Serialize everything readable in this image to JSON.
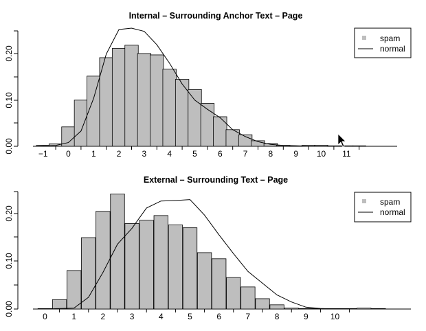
{
  "chart_data": [
    {
      "type": "bar",
      "title": "Internal – Surrounding Anchor Text – Page",
      "xlabel": "",
      "ylabel": "",
      "ylim": [
        0,
        0.25
      ],
      "yticks": [
        "0.00",
        "0.10",
        "0.20"
      ],
      "x_tick_labels": [
        "−1",
        "0",
        "1",
        "2",
        "3",
        "4",
        "5",
        "6",
        "7",
        "8",
        "9",
        "10",
        "11"
      ],
      "legend": {
        "position": "top-right",
        "items": [
          "spam",
          "normal"
        ]
      },
      "series": [
        {
          "name": "spam",
          "kind": "bar",
          "x": [
            -1,
            -0.5,
            0,
            0.5,
            1,
            1.5,
            2,
            2.5,
            3,
            3.5,
            4,
            4.5,
            5,
            5.5,
            6,
            6.5,
            7,
            7.5,
            8,
            8.5,
            9,
            9.5,
            10,
            10.5,
            11,
            11.5
          ],
          "values": [
            0.002,
            0.005,
            0.042,
            0.1,
            0.152,
            0.192,
            0.212,
            0.219,
            0.201,
            0.198,
            0.167,
            0.145,
            0.123,
            0.093,
            0.064,
            0.036,
            0.025,
            0.012,
            0.006,
            0.002,
            0.001,
            0.002,
            0.002,
            0.001,
            0.001,
            0.001
          ]
        },
        {
          "name": "normal",
          "kind": "line",
          "x": [
            -1.3,
            -0.5,
            0,
            0.5,
            1,
            1.5,
            2,
            2.5,
            3,
            3.5,
            4,
            4.5,
            5,
            5.5,
            6,
            6.5,
            7,
            7.5,
            8,
            8.5,
            9,
            9.5,
            10,
            10.5,
            11
          ],
          "values": [
            0,
            0.002,
            0.008,
            0.033,
            0.104,
            0.2,
            0.253,
            0.256,
            0.249,
            0.22,
            0.18,
            0.135,
            0.1,
            0.08,
            0.062,
            0.036,
            0.021,
            0.01,
            0.004,
            0.002,
            0.001,
            0,
            0,
            0,
            0
          ]
        }
      ]
    },
    {
      "type": "bar",
      "title": "External –  Surrounding Text – Page",
      "xlabel": "",
      "ylabel": "",
      "ylim": [
        0,
        0.25
      ],
      "yticks": [
        "0.00",
        "0.10",
        "0.20"
      ],
      "x_tick_labels": [
        "0",
        "1",
        "2",
        "3",
        "4",
        "5",
        "6",
        "7",
        "8",
        "9",
        "10"
      ],
      "legend": {
        "position": "top-right",
        "items": [
          "spam",
          "normal"
        ]
      },
      "series": [
        {
          "name": "spam",
          "kind": "bar",
          "x": [
            0,
            0.5,
            1,
            1.5,
            2,
            2.5,
            3,
            3.5,
            4,
            4.5,
            5,
            5.5,
            6,
            6.5,
            7,
            7.5,
            8,
            8.5,
            9,
            9.5,
            10,
            10.5,
            11,
            11.5
          ],
          "values": [
            0.001,
            0.02,
            0.082,
            0.152,
            0.208,
            0.245,
            0.182,
            0.189,
            0.199,
            0.179,
            0.173,
            0.12,
            0.107,
            0.067,
            0.047,
            0.022,
            0.009,
            0.002,
            0.001,
            0.001,
            0.001,
            0.001,
            0.002,
            0.001
          ]
        },
        {
          "name": "normal",
          "kind": "line",
          "x": [
            0,
            1,
            1.5,
            2,
            2.5,
            3,
            3.5,
            4,
            4.5,
            5,
            5.5,
            6,
            6.5,
            7,
            7.5,
            8,
            8.5,
            9,
            9.5,
            10
          ],
          "values": [
            0,
            0.002,
            0.025,
            0.078,
            0.138,
            0.172,
            0.215,
            0.23,
            0.231,
            0.233,
            0.2,
            0.158,
            0.118,
            0.08,
            0.055,
            0.03,
            0.015,
            0.004,
            0.001,
            0
          ]
        }
      ]
    }
  ]
}
